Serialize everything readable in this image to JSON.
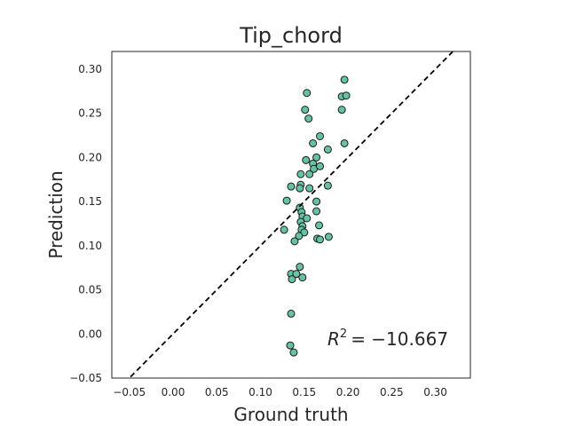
{
  "colors": {
    "marker_fill": "#66c2a5",
    "marker_edge": "#1a1a1a",
    "identity_line": "#000000",
    "frame": "#262626"
  },
  "chart_data": {
    "type": "scatter",
    "title": "Tip_chord",
    "xlabel": "Ground truth",
    "ylabel": "Prediction",
    "xlim": [
      -0.07,
      0.34
    ],
    "ylim": [
      -0.05,
      0.32
    ],
    "x_ticks": [
      -0.05,
      0.0,
      0.05,
      0.1,
      0.15,
      0.2,
      0.25,
      0.3
    ],
    "y_ticks": [
      -0.05,
      0.0,
      0.05,
      0.1,
      0.15,
      0.2,
      0.25,
      0.3
    ],
    "x_tick_labels": [
      "−0.05",
      "0.00",
      "0.05",
      "0.10",
      "0.15",
      "0.20",
      "0.25",
      "0.30"
    ],
    "y_tick_labels": [
      "−0.05",
      "0.00",
      "0.05",
      "0.10",
      "0.15",
      "0.20",
      "0.25",
      "0.30"
    ],
    "grid": false,
    "reference_line": {
      "style": "dashed",
      "slope": 1,
      "intercept": 0
    },
    "annotation": {
      "prefix": "R",
      "exponent": "2",
      "value_text": "= −10.667"
    },
    "points": [
      {
        "x": 0.196,
        "y": 0.288
      },
      {
        "x": 0.153,
        "y": 0.273
      },
      {
        "x": 0.193,
        "y": 0.269
      },
      {
        "x": 0.198,
        "y": 0.27
      },
      {
        "x": 0.151,
        "y": 0.254
      },
      {
        "x": 0.193,
        "y": 0.254
      },
      {
        "x": 0.155,
        "y": 0.244
      },
      {
        "x": 0.168,
        "y": 0.224
      },
      {
        "x": 0.16,
        "y": 0.216
      },
      {
        "x": 0.196,
        "y": 0.216
      },
      {
        "x": 0.177,
        "y": 0.209
      },
      {
        "x": 0.164,
        "y": 0.2
      },
      {
        "x": 0.152,
        "y": 0.197
      },
      {
        "x": 0.16,
        "y": 0.193
      },
      {
        "x": 0.161,
        "y": 0.187
      },
      {
        "x": 0.168,
        "y": 0.19
      },
      {
        "x": 0.156,
        "y": 0.181
      },
      {
        "x": 0.146,
        "y": 0.181
      },
      {
        "x": 0.135,
        "y": 0.167
      },
      {
        "x": 0.146,
        "y": 0.169
      },
      {
        "x": 0.145,
        "y": 0.165
      },
      {
        "x": 0.156,
        "y": 0.165
      },
      {
        "x": 0.177,
        "y": 0.168
      },
      {
        "x": 0.13,
        "y": 0.151
      },
      {
        "x": 0.164,
        "y": 0.15
      },
      {
        "x": 0.164,
        "y": 0.139
      },
      {
        "x": 0.145,
        "y": 0.143
      },
      {
        "x": 0.147,
        "y": 0.138
      },
      {
        "x": 0.148,
        "y": 0.133
      },
      {
        "x": 0.153,
        "y": 0.131
      },
      {
        "x": 0.146,
        "y": 0.127
      },
      {
        "x": 0.148,
        "y": 0.122
      },
      {
        "x": 0.167,
        "y": 0.123
      },
      {
        "x": 0.147,
        "y": 0.118
      },
      {
        "x": 0.15,
        "y": 0.115
      },
      {
        "x": 0.127,
        "y": 0.118
      },
      {
        "x": 0.144,
        "y": 0.111
      },
      {
        "x": 0.139,
        "y": 0.105
      },
      {
        "x": 0.165,
        "y": 0.108
      },
      {
        "x": 0.168,
        "y": 0.107
      },
      {
        "x": 0.178,
        "y": 0.11
      },
      {
        "x": 0.135,
        "y": 0.068
      },
      {
        "x": 0.136,
        "y": 0.062
      },
      {
        "x": 0.141,
        "y": 0.068
      },
      {
        "x": 0.145,
        "y": 0.076
      },
      {
        "x": 0.148,
        "y": 0.064
      },
      {
        "x": 0.135,
        "y": 0.023
      },
      {
        "x": 0.134,
        "y": -0.013
      },
      {
        "x": 0.138,
        "y": -0.021
      }
    ]
  }
}
